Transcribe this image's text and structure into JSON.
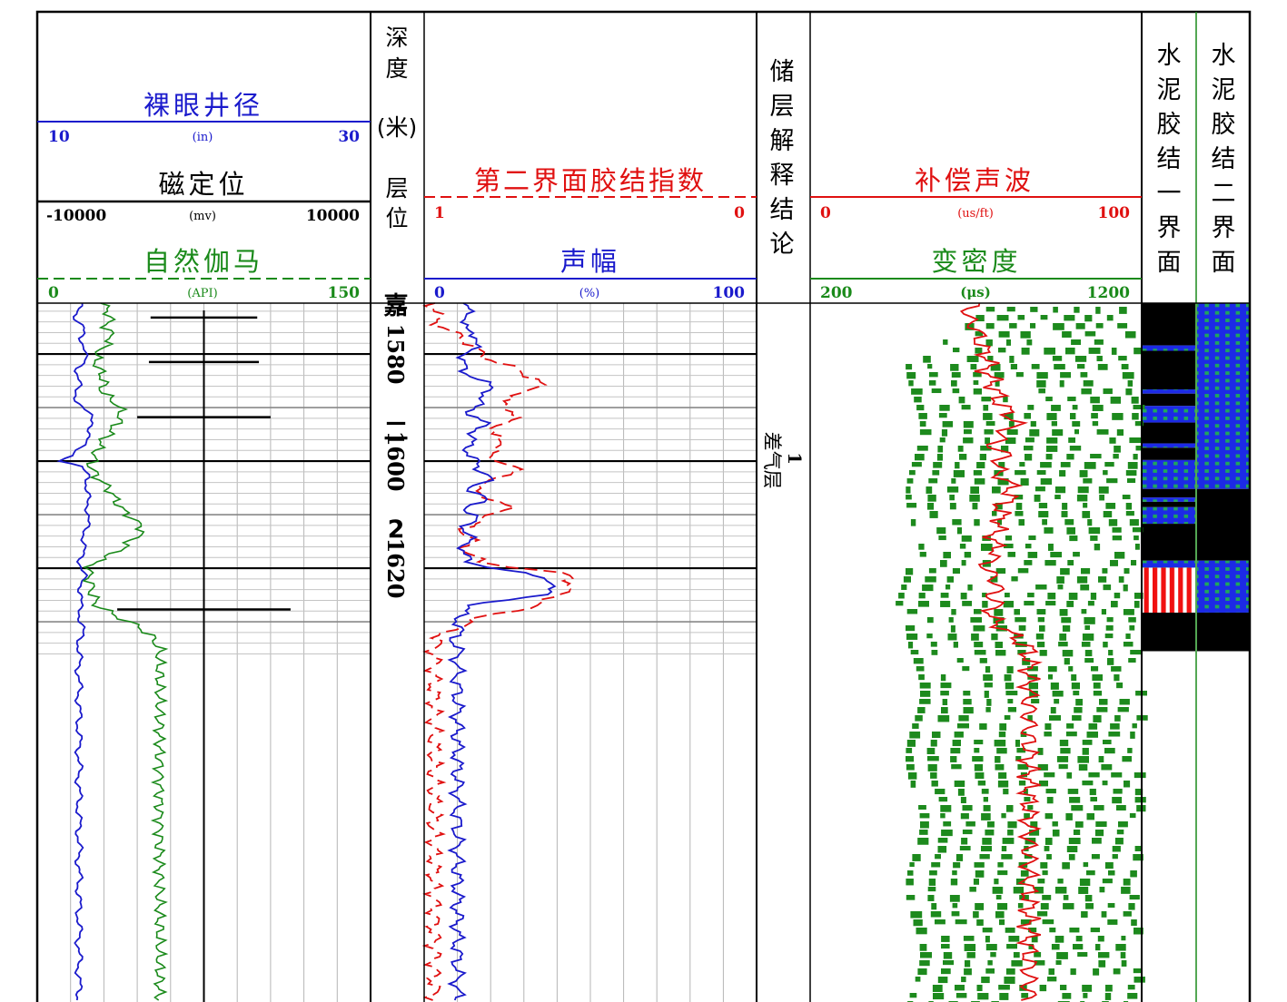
{
  "tracks": {
    "track1": {
      "caliper": {
        "label": "裸眼井径",
        "min": "10",
        "unit": "(in)",
        "max": "30",
        "color": "#1a1acc"
      },
      "ccl": {
        "label": "磁定位",
        "min": "-10000",
        "unit": "(mv)",
        "max": "10000",
        "color": "#000000"
      },
      "gr": {
        "label": "自然伽马",
        "min": "0",
        "unit": "(API)",
        "max": "150",
        "color": "#1a8a1a"
      }
    },
    "depth": {
      "header_chars": [
        "深",
        "度",
        "(米)",
        "层",
        "位"
      ],
      "depth_labels": [
        {
          "text": "1580",
          "depth": 1580
        },
        {
          "text": "1600",
          "depth": 1600
        },
        {
          "text": "1620",
          "depth": 1620
        }
      ],
      "zone_chars": [
        {
          "text": "嘉",
          "depth": 1572.5
        },
        {
          "text": "二",
          "depth": 1596
        },
        {
          "text": "2",
          "depth": 1614.2
        }
      ]
    },
    "track3": {
      "sbi": {
        "label": "第二界面胶结指数",
        "min": "1",
        "max": "0",
        "color": "#e01010"
      },
      "amp": {
        "label": "声幅",
        "min": "0",
        "unit": "(%)",
        "max": "100",
        "color": "#1a1acc"
      }
    },
    "interp": {
      "header": "储层解释结论",
      "layer_number": "1",
      "layer_label": "差气层",
      "layer_depth": 1599.5
    },
    "track5": {
      "ac": {
        "label": "补偿声波",
        "min": "0",
        "unit": "(us/ft)",
        "max": "100",
        "color": "#e01010"
      },
      "vdl": {
        "label": "变密度",
        "min": "200",
        "unit": "(μs)",
        "max": "1200",
        "color": "#1a8a1a"
      }
    },
    "bond1": {
      "header": "水泥胶结一界面"
    },
    "bond2": {
      "header": "水泥胶结二界面"
    }
  },
  "chart_data": {
    "type": "line",
    "depth_range": [
      1570.5,
      1635.5
    ],
    "depth_unit": "m",
    "series": [
      {
        "name": "裸眼井径",
        "scale": [
          10,
          30
        ],
        "depth": [
          1571,
          1573,
          1575,
          1577,
          1579,
          1581,
          1583,
          1585,
          1587,
          1589,
          1591,
          1593,
          1595,
          1597,
          1599,
          1600,
          1601,
          1603,
          1605,
          1607,
          1609,
          1611,
          1613,
          1615,
          1617,
          1619,
          1621,
          1623,
          1625,
          1627,
          1629,
          1631,
          1633,
          1635
        ],
        "values": [
          12.5,
          12.3,
          12.8,
          12.5,
          13.0,
          12.8,
          12.4,
          12.6,
          12.2,
          12.5,
          13.0,
          13.4,
          13.1,
          12.7,
          12.2,
          11.4,
          12.5,
          13.2,
          12.9,
          13.0,
          13.1,
          13.0,
          12.9,
          12.8,
          12.7,
          12.6,
          12.8,
          12.6,
          12.7,
          12.5,
          12.6,
          12.7,
          12.6,
          12.5
        ]
      },
      {
        "name": "自然伽马",
        "scale": [
          0,
          150
        ],
        "depth": [
          1571,
          1573,
          1575,
          1577,
          1579,
          1581,
          1583,
          1585,
          1587,
          1589,
          1591,
          1593,
          1595,
          1597,
          1599,
          1601,
          1603,
          1605,
          1607,
          1609,
          1611,
          1613,
          1615,
          1617,
          1619,
          1621,
          1623,
          1625,
          1627,
          1629,
          1631,
          1633,
          1635
        ],
        "values": [
          30,
          33,
          31,
          34,
          29,
          26,
          28,
          30,
          29,
          35,
          38,
          36,
          32,
          28,
          26,
          24,
          27,
          32,
          35,
          38,
          44,
          48,
          42,
          36,
          25,
          23,
          24,
          25,
          27,
          36,
          46,
          52,
          55
        ]
      },
      {
        "name": "磁定位",
        "scale": [
          -10000,
          10000
        ],
        "depth": [
          1573.2,
          1581.5,
          1591.8,
          1627.7
        ],
        "values": [
          3200,
          3300,
          4000,
          5200
        ]
      },
      {
        "name": "第二界面胶结指数",
        "scale": [
          1,
          0
        ],
        "depth": [
          1571,
          1573,
          1575,
          1577,
          1579,
          1581,
          1583,
          1585,
          1587,
          1589,
          1591,
          1593,
          1595,
          1597,
          1599,
          1601,
          1603,
          1605,
          1607,
          1609,
          1611,
          1613,
          1615,
          1617,
          1619,
          1621,
          1623,
          1625,
          1627,
          1629,
          1631,
          1633,
          1635
        ],
        "values": [
          0.97,
          0.96,
          0.95,
          0.88,
          0.85,
          0.8,
          0.72,
          0.65,
          0.68,
          0.78,
          0.72,
          0.76,
          0.8,
          0.75,
          0.82,
          0.72,
          0.76,
          0.86,
          0.8,
          0.74,
          0.84,
          0.88,
          0.86,
          0.88,
          0.82,
          0.58,
          0.55,
          0.6,
          0.66,
          0.82,
          0.9,
          0.96,
          0.97
        ]
      },
      {
        "name": "声幅",
        "scale": [
          0,
          100
        ],
        "depth": [
          1571,
          1573,
          1575,
          1577,
          1579,
          1581,
          1583,
          1585,
          1587,
          1589,
          1591,
          1593,
          1595,
          1597,
          1599,
          1601,
          1603,
          1605,
          1607,
          1609,
          1611,
          1613,
          1615,
          1617,
          1619,
          1621,
          1623,
          1625,
          1627,
          1629,
          1631,
          1633,
          1635
        ],
        "values": [
          12,
          14,
          11,
          17,
          14,
          12,
          11,
          18,
          20,
          16,
          14,
          18,
          15,
          13,
          14,
          16,
          20,
          14,
          18,
          13,
          15,
          12,
          14,
          11,
          14,
          30,
          41,
          35,
          14,
          10,
          11,
          9,
          10
        ]
      },
      {
        "name": "补偿声波",
        "scale": [
          0,
          100
        ],
        "depth": [
          1571,
          1573,
          1575,
          1577,
          1579,
          1581,
          1583,
          1585,
          1587,
          1589,
          1591,
          1593,
          1595,
          1597,
          1599,
          1601,
          1603,
          1605,
          1607,
          1609,
          1611,
          1613,
          1615,
          1617,
          1619,
          1621,
          1623,
          1625,
          1627,
          1629,
          1631,
          1633,
          1635
        ],
        "values": [
          49,
          47,
          50,
          51,
          52,
          54,
          53,
          55,
          56,
          57,
          60,
          62,
          58,
          55,
          59,
          56,
          58,
          61,
          60,
          57,
          58,
          56,
          55,
          57,
          53,
          54,
          57,
          55,
          56,
          54,
          58,
          62,
          66
        ]
      }
    ],
    "bond1_intervals": [
      {
        "from": 1570.5,
        "to": 1578.4,
        "class": "black"
      },
      {
        "from": 1578.4,
        "to": 1579.4,
        "class": "blue"
      },
      {
        "from": 1579.4,
        "to": 1586.6,
        "class": "black"
      },
      {
        "from": 1586.6,
        "to": 1587.4,
        "class": "blue"
      },
      {
        "from": 1587.4,
        "to": 1589.7,
        "class": "black"
      },
      {
        "from": 1589.7,
        "to": 1592.8,
        "class": "blue"
      },
      {
        "from": 1592.8,
        "to": 1596.7,
        "class": "black"
      },
      {
        "from": 1596.7,
        "to": 1597.5,
        "class": "blue"
      },
      {
        "from": 1597.5,
        "to": 1599.8,
        "class": "black"
      },
      {
        "from": 1599.8,
        "to": 1605.2,
        "class": "blue"
      },
      {
        "from": 1605.2,
        "to": 1606.8,
        "class": "black"
      },
      {
        "from": 1606.8,
        "to": 1607.6,
        "class": "blue"
      },
      {
        "from": 1607.6,
        "to": 1608.6,
        "class": "black"
      },
      {
        "from": 1608.6,
        "to": 1611.7,
        "class": "blue"
      },
      {
        "from": 1611.7,
        "to": 1618.6,
        "class": "black"
      },
      {
        "from": 1618.6,
        "to": 1619.9,
        "class": "blue"
      },
      {
        "from": 1619.9,
        "to": 1628.3,
        "class": "red"
      },
      {
        "from": 1628.3,
        "to": 1635.5,
        "class": "black"
      }
    ],
    "bond2_intervals": [
      {
        "from": 1570.5,
        "to": 1605.2,
        "class": "blue"
      },
      {
        "from": 1605.2,
        "to": 1618.6,
        "class": "black"
      },
      {
        "from": 1618.6,
        "to": 1628.3,
        "class": "blue"
      },
      {
        "from": 1628.3,
        "to": 1635.5,
        "class": "black"
      }
    ]
  }
}
